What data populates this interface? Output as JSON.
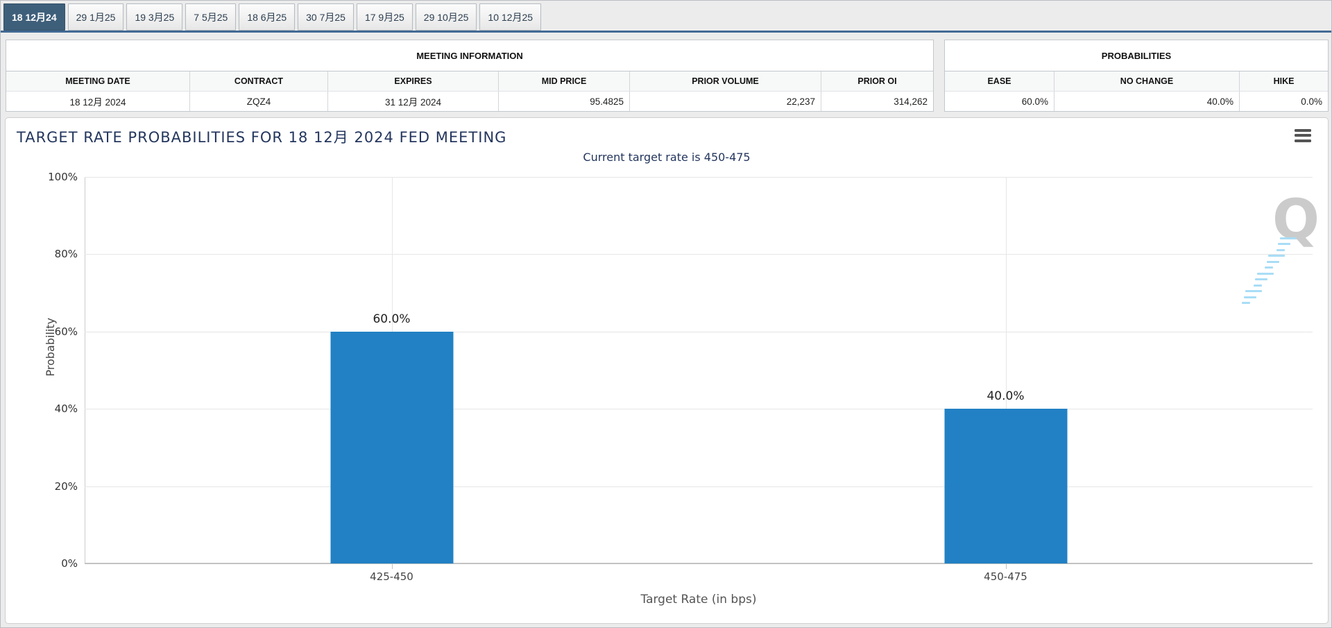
{
  "tabs": {
    "items": [
      {
        "label": "18 12月24",
        "selected": true
      },
      {
        "label": "29 1月25",
        "selected": false
      },
      {
        "label": "19 3月25",
        "selected": false
      },
      {
        "label": "7 5月25",
        "selected": false
      },
      {
        "label": "18 6月25",
        "selected": false
      },
      {
        "label": "30 7月25",
        "selected": false
      },
      {
        "label": "17 9月25",
        "selected": false
      },
      {
        "label": "29 10月25",
        "selected": false
      },
      {
        "label": "10 12月25",
        "selected": false
      }
    ]
  },
  "meeting_info": {
    "title": "MEETING INFORMATION",
    "columns": [
      "MEETING DATE",
      "CONTRACT",
      "EXPIRES",
      "MID PRICE",
      "PRIOR VOLUME",
      "PRIOR OI"
    ],
    "row": {
      "meeting_date": "18 12月 2024",
      "contract": "ZQZ4",
      "expires": "31 12月 2024",
      "mid_price": "95.4825",
      "prior_volume": "22,237",
      "prior_oi": "314,262"
    }
  },
  "probabilities": {
    "title": "PROBABILITIES",
    "columns": [
      "EASE",
      "NO CHANGE",
      "HIKE"
    ],
    "row": {
      "ease": "60.0%",
      "no_change": "40.0%",
      "hike": "0.0%"
    }
  },
  "chart": {
    "menu_icon": "context-menu-hamburger-icon",
    "watermark_letter": "Q",
    "colors": {
      "bar": "#2181c4",
      "title_text": "#24365e",
      "selected_tab": "#3e5f7a",
      "gridline": "#e6e6e6"
    }
  },
  "chart_data": {
    "type": "bar",
    "title": "TARGET RATE PROBABILITIES FOR 18 12月 2024 FED MEETING",
    "subtitle": "Current target rate is 450-475",
    "categories": [
      "425-450",
      "450-475"
    ],
    "values": [
      60.0,
      40.0
    ],
    "value_labels": [
      "60.0%",
      "40.0%"
    ],
    "xlabel": "Target Rate (in bps)",
    "ylabel": "Probability",
    "ylim": [
      0,
      100
    ],
    "yticks": [
      0,
      20,
      40,
      60,
      80,
      100
    ],
    "ytick_labels": [
      "0%",
      "20%",
      "40%",
      "60%",
      "80%",
      "100%"
    ],
    "grid": true,
    "legend": false,
    "bar_color": "#2181c4"
  }
}
